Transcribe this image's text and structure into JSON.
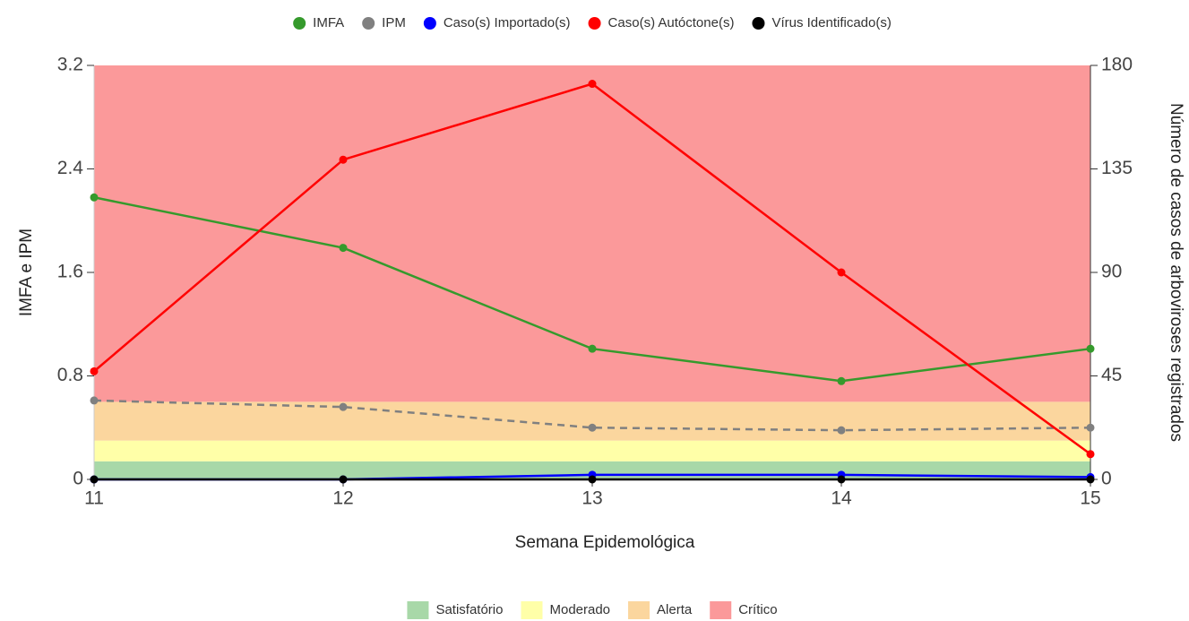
{
  "chart_data": {
    "type": "line",
    "x": [
      11,
      12,
      13,
      14,
      15
    ],
    "xlim": [
      11,
      15
    ],
    "xticks": [
      11,
      12,
      13,
      14,
      15
    ],
    "ylim": [
      0,
      3.2
    ],
    "yticks": [
      0,
      0.8,
      1.6,
      2.4,
      3.2
    ],
    "y2lim": [
      0,
      180
    ],
    "y2ticks": [
      0,
      45,
      90,
      135,
      180
    ],
    "xlabel": "Semana Epidemológica",
    "ylabel": "IMFA e IPM",
    "y2label": "Número de casos de arboviroses registrados",
    "legend": "top",
    "series": [
      {
        "name": "IMFA",
        "color": "#359a2c",
        "values": [
          2.18,
          1.79,
          1.01,
          0.76,
          1.01
        ]
      },
      {
        "name": "IPM",
        "color": "#808080",
        "dashed": true,
        "values": [
          0.61,
          0.56,
          0.4,
          0.38,
          0.4
        ]
      },
      {
        "name": "Caso(s) Importado(s)",
        "color": "#0000ff",
        "axis": "y2",
        "values": [
          0,
          0,
          2,
          2,
          1
        ]
      },
      {
        "name": "Caso(s) Autóctone(s)",
        "color": "#ff0000",
        "axis": "y2",
        "values": [
          47,
          139,
          172,
          90,
          11
        ]
      },
      {
        "name": "Vírus Identificado(s)",
        "color": "#000000",
        "axis": "y2",
        "values": [
          0,
          0,
          0,
          0,
          0
        ]
      }
    ],
    "bands": [
      {
        "name": "Satisfatório",
        "color": "#a8d8a8",
        "from": 0,
        "to": 0.14
      },
      {
        "name": "Moderado",
        "color": "#ffffa8",
        "from": 0.14,
        "to": 0.3
      },
      {
        "name": "Alerta",
        "color": "#fbd69e",
        "from": 0.3,
        "to": 0.6
      },
      {
        "name": "Crítico",
        "color": "#fb999a",
        "from": 0.6,
        "to": 3.2
      }
    ]
  }
}
